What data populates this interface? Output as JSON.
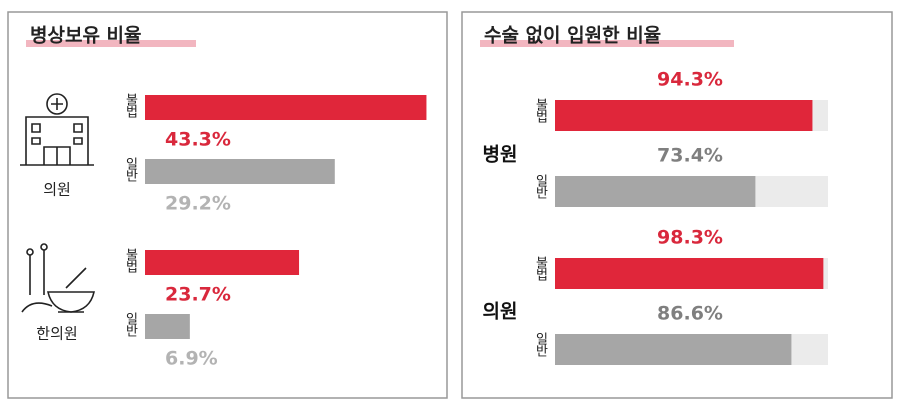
{
  "chart_data": [
    {
      "type": "bar",
      "title": "병상보유 비율",
      "categories": [
        "의원",
        "한의원"
      ],
      "series": [
        {
          "name": "불법",
          "color": "#e0263a",
          "values": [
            43.3,
            23.7
          ],
          "value_labels": [
            "43.3%",
            "23.7%"
          ]
        },
        {
          "name": "일반",
          "color": "#a6a6a6",
          "values": [
            29.2,
            6.9
          ],
          "value_labels": [
            "29.2%",
            "6.9%"
          ]
        }
      ]
    },
    {
      "type": "bar",
      "title": "수술 없이 입원한 비율",
      "categories": [
        "병원",
        "의원"
      ],
      "xlim": [
        0,
        100
      ],
      "series": [
        {
          "name": "불법",
          "color": "#e0263a",
          "values": [
            94.3,
            98.3
          ],
          "value_labels": [
            "94.3%",
            "98.3%"
          ]
        },
        {
          "name": "일반",
          "color": "#a6a6a6",
          "values": [
            73.4,
            86.6
          ],
          "value_labels": [
            "73.4%",
            "86.6%"
          ]
        }
      ]
    }
  ]
}
